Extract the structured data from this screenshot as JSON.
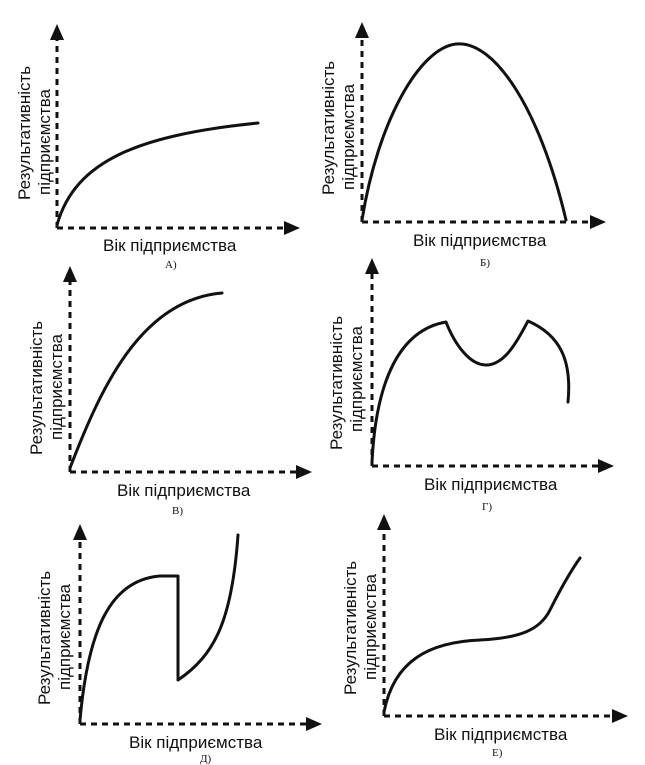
{
  "panels": [
    {
      "id": "a",
      "label": "А)",
      "y_label_line1": "Результативність",
      "y_label_line2": "підприємства",
      "x_label": "Вік підприємства",
      "shape": "concave-increasing"
    },
    {
      "id": "b",
      "label": "Б)",
      "y_label_line1": "Результативність",
      "y_label_line2": "підприємства",
      "x_label": "Вік підприємства",
      "shape": "inverted-u"
    },
    {
      "id": "v",
      "label": "В)",
      "y_label_line1": "Результативність",
      "y_label_line2": "підприємства",
      "x_label": "Вік підприємства",
      "shape": "saturating-growth"
    },
    {
      "id": "g",
      "label": "Г)",
      "y_label_line1": "Результативність",
      "y_label_line2": "підприємства",
      "x_label": "Вік підприємства",
      "shape": "double-peak"
    },
    {
      "id": "d",
      "label": "Д)",
      "y_label_line1": "Результативність",
      "y_label_line2": "підприємства",
      "x_label": "Вік підприємства",
      "shape": "plateau-drop-rise"
    },
    {
      "id": "e",
      "label": "Е)",
      "y_label_line1": "Результативність",
      "y_label_line2": "підприємства",
      "x_label": "Вік підприємства",
      "shape": "s-curve"
    }
  ]
}
